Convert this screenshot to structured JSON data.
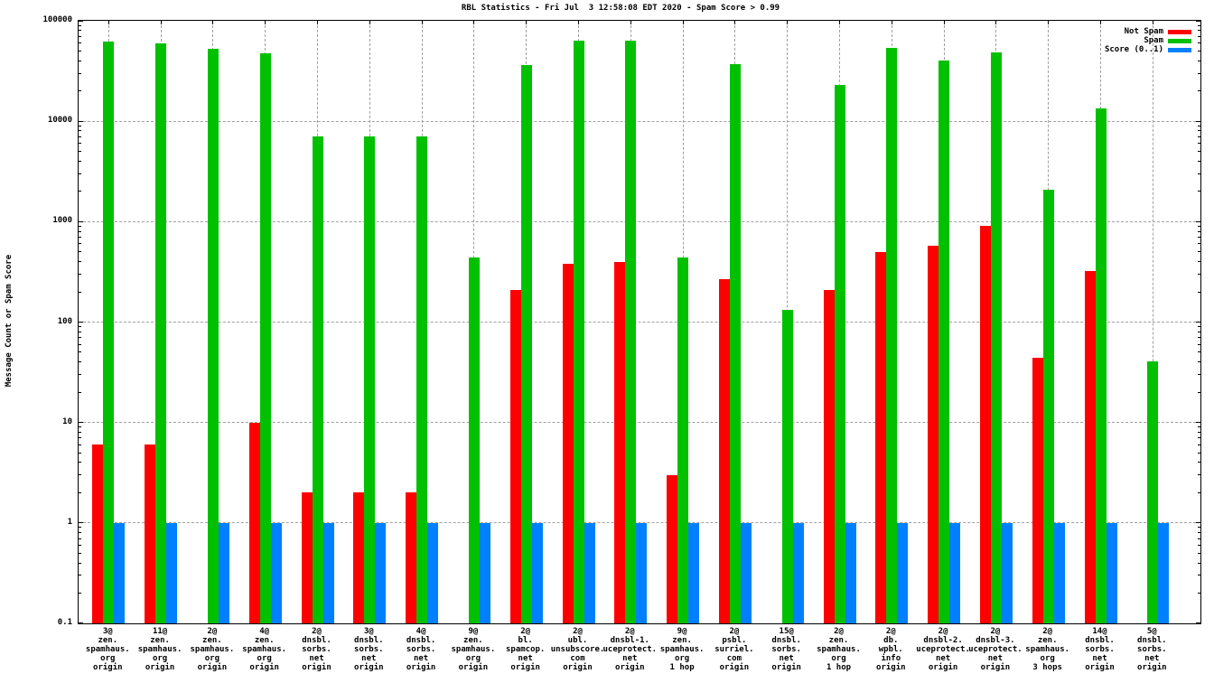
{
  "title": "RBL Statistics - Fri Jul  3 12:58:08 EDT 2020 - Spam Score > 0.99",
  "chart_data": {
    "type": "bar",
    "title": "RBL Statistics - Fri Jul  3 12:58:08 EDT 2020 - Spam Score > 0.99",
    "xlabel": "",
    "ylabel": "Message Count or Spam Score",
    "y_scale": "log",
    "ylim": [
      0.1,
      100000
    ],
    "y_ticks": [
      "100000",
      "10000",
      "1000",
      "100",
      "10",
      "1",
      "0.1"
    ],
    "grid": true,
    "legend_position": "top-right",
    "grid_color": "#a0a0a0",
    "legend": [
      {
        "key": "not-spam",
        "name": "Not Spam",
        "color": "#ff0000"
      },
      {
        "key": "spam",
        "name": "Spam",
        "color": "#00c000"
      },
      {
        "key": "score",
        "name": "Score (0..1)",
        "color": "#0080ff"
      }
    ],
    "categories": [
      [
        "3@",
        "zen.",
        "spamhaus.",
        "org",
        "origin"
      ],
      [
        "11@",
        "zen.",
        "spamhaus.",
        "org",
        "origin"
      ],
      [
        "2@",
        "zen.",
        "spamhaus.",
        "org",
        "origin"
      ],
      [
        "4@",
        "zen.",
        "spamhaus.",
        "org",
        "origin"
      ],
      [
        "2@",
        "dnsbl.",
        "sorbs.",
        "net",
        "origin"
      ],
      [
        "3@",
        "dnsbl.",
        "sorbs.",
        "net",
        "origin"
      ],
      [
        "4@",
        "dnsbl.",
        "sorbs.",
        "net",
        "origin"
      ],
      [
        "9@",
        "zen.",
        "spamhaus.",
        "org",
        "origin"
      ],
      [
        "2@",
        "bl.",
        "spamcop.",
        "net",
        "origin"
      ],
      [
        "2@",
        "ubl.",
        "unsubscore.",
        "com",
        "origin"
      ],
      [
        "2@",
        "dnsbl-1.",
        "uceprotect.",
        "net",
        "origin"
      ],
      [
        "9@",
        "zen.",
        "spamhaus.",
        "org",
        "1 hop"
      ],
      [
        "2@",
        "psbl.",
        "surriel.",
        "com",
        "origin"
      ],
      [
        "15@",
        "dnsbl.",
        "sorbs.",
        "net",
        "origin"
      ],
      [
        "2@",
        "zen.",
        "spamhaus.",
        "org",
        "1 hop"
      ],
      [
        "2@",
        "db.",
        "wpbl.",
        "info",
        "origin"
      ],
      [
        "2@",
        "dnsbl-2.",
        "uceprotect.",
        "net",
        "origin"
      ],
      [
        "2@",
        "dnsbl-3.",
        "uceprotect.",
        "net",
        "origin"
      ],
      [
        "2@",
        "zen.",
        "spamhaus.",
        "org",
        "3 hops"
      ],
      [
        "14@",
        "dnsbl.",
        "sorbs.",
        "net",
        "origin"
      ],
      [
        "5@",
        "dnsbl.",
        "sorbs.",
        "net",
        "origin"
      ]
    ],
    "series": [
      {
        "key": "not-spam",
        "name": "Not Spam",
        "color": "#ff0000",
        "values": [
          6,
          6,
          null,
          10,
          2,
          2,
          2,
          null,
          210,
          380,
          400,
          3,
          265,
          null,
          210,
          500,
          580,
          900,
          44,
          320,
          null
        ]
      },
      {
        "key": "spam",
        "name": "Spam",
        "color": "#00c000",
        "values": [
          62000,
          59000,
          53000,
          47000,
          7000,
          7000,
          7000,
          440,
          36000,
          64000,
          63000,
          440,
          37000,
          133,
          23000,
          54000,
          40000,
          48000,
          2100,
          13500,
          41
        ]
      },
      {
        "key": "score",
        "name": "Score (0..1)",
        "color": "#0080ff",
        "values": [
          1,
          1,
          1,
          1,
          1,
          1,
          1,
          1,
          1,
          1,
          1,
          1,
          1,
          1,
          1,
          1,
          1,
          1,
          1,
          1,
          1
        ]
      }
    ]
  }
}
